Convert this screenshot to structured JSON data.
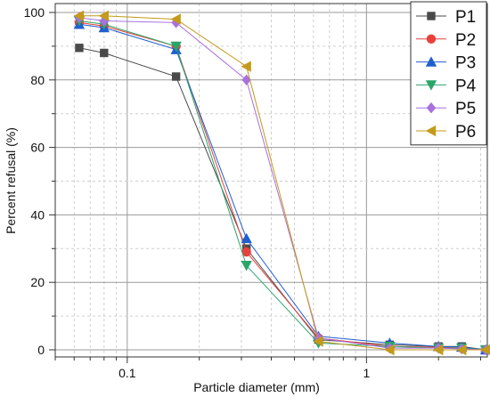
{
  "chart_data": {
    "type": "line",
    "xlabel": "Particle diameter (mm)",
    "ylabel": "Percent refusal (%)",
    "x_scale": "log",
    "xlim": [
      0.05,
      3.2
    ],
    "ylim": [
      0,
      100
    ],
    "x_ticks": [
      {
        "value": 0.1,
        "label": "0.1"
      },
      {
        "value": 1,
        "label": "1"
      }
    ],
    "y_ticks": [
      {
        "value": 0,
        "label": "0"
      },
      {
        "value": 20,
        "label": "20"
      },
      {
        "value": 40,
        "label": "40"
      },
      {
        "value": 60,
        "label": "60"
      },
      {
        "value": 80,
        "label": "80"
      },
      {
        "value": 100,
        "label": "100"
      }
    ],
    "grid": true,
    "legend_position": "top-right",
    "x": [
      0.063,
      0.08,
      0.16,
      0.315,
      0.63,
      1.25,
      2.0,
      2.5,
      3.15
    ],
    "series": [
      {
        "name": "P1",
        "color": "#4a4a4a",
        "marker": "square",
        "values": [
          89.5,
          88.0,
          81.0,
          30.0,
          3.0,
          1.5,
          1.0,
          1.0,
          0.0
        ]
      },
      {
        "name": "P2",
        "color": "#e8413c",
        "marker": "circle",
        "values": [
          97.0,
          96.0,
          90.0,
          29.0,
          3.5,
          1.0,
          0.8,
          0.5,
          0.0
        ]
      },
      {
        "name": "P3",
        "color": "#1f5fd0",
        "marker": "triangle-up",
        "values": [
          96.5,
          95.5,
          89.0,
          33.0,
          4.0,
          2.0,
          1.0,
          0.8,
          0.0
        ]
      },
      {
        "name": "P4",
        "color": "#2aa56a",
        "marker": "triangle-down",
        "values": [
          97.5,
          96.5,
          90.0,
          25.0,
          2.0,
          1.0,
          0.5,
          0.5,
          0.0
        ]
      },
      {
        "name": "P5",
        "color": "#a970e0",
        "marker": "diamond",
        "values": [
          98.5,
          97.5,
          97.0,
          80.0,
          3.5,
          0.5,
          0.5,
          0.3,
          0.0
        ]
      },
      {
        "name": "P6",
        "color": "#c49a1a",
        "marker": "triangle-left",
        "values": [
          99.0,
          99.0,
          98.0,
          84.0,
          2.5,
          0.0,
          0.0,
          0.0,
          0.0
        ]
      }
    ]
  }
}
